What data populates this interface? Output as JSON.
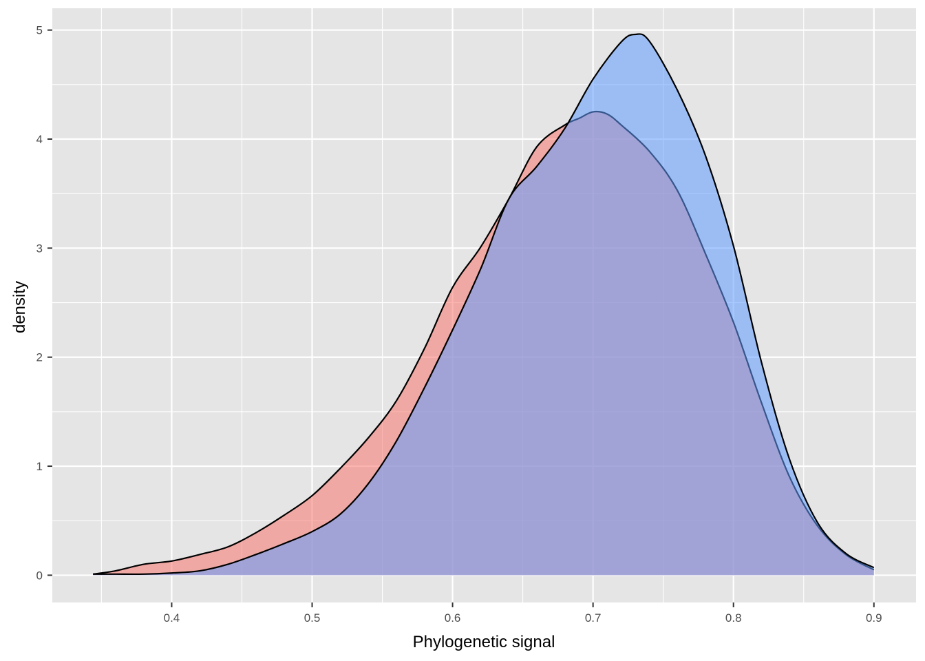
{
  "chart_data": {
    "type": "area",
    "title": "",
    "xlabel": "Phylogenetic signal",
    "ylabel": "density",
    "xlim": [
      0.315,
      0.93
    ],
    "ylim": [
      -0.25,
      5.2
    ],
    "x_ticks": [
      0.4,
      0.5,
      0.6,
      0.7,
      0.8,
      0.9
    ],
    "x_tick_labels": [
      "0.4",
      "0.5",
      "0.6",
      "0.7",
      "0.8",
      "0.9"
    ],
    "y_ticks": [
      0,
      1,
      2,
      3,
      4,
      5
    ],
    "y_tick_labels": [
      "0",
      "1",
      "2",
      "3",
      "4",
      "5"
    ],
    "grid": true,
    "legend": "none",
    "colors": {
      "panel": "#e5e5e5",
      "grid": "#ffffff",
      "series_a_fill": "#f8766d",
      "series_b_fill": "#619cff",
      "outline": "#000000"
    },
    "series": [
      {
        "fill": "#f8766d",
        "x": [
          0.344,
          0.36,
          0.38,
          0.4,
          0.42,
          0.44,
          0.46,
          0.48,
          0.5,
          0.52,
          0.54,
          0.56,
          0.58,
          0.6,
          0.62,
          0.64,
          0.66,
          0.68,
          0.69,
          0.7,
          0.71,
          0.72,
          0.74,
          0.76,
          0.78,
          0.8,
          0.82,
          0.84,
          0.86,
          0.88,
          0.9
        ],
        "y": [
          0.01,
          0.04,
          0.1,
          0.13,
          0.19,
          0.26,
          0.39,
          0.55,
          0.73,
          0.98,
          1.26,
          1.6,
          2.08,
          2.64,
          3.01,
          3.45,
          3.93,
          4.13,
          4.19,
          4.25,
          4.23,
          4.13,
          3.89,
          3.53,
          2.95,
          2.32,
          1.58,
          0.9,
          0.45,
          0.19,
          0.05
        ]
      },
      {
        "fill": "#619cff",
        "x": [
          0.344,
          0.36,
          0.38,
          0.4,
          0.42,
          0.44,
          0.46,
          0.48,
          0.5,
          0.52,
          0.54,
          0.56,
          0.58,
          0.6,
          0.62,
          0.64,
          0.66,
          0.68,
          0.7,
          0.72,
          0.73,
          0.74,
          0.76,
          0.78,
          0.8,
          0.82,
          0.84,
          0.86,
          0.88,
          0.9
        ],
        "y": [
          0.01,
          0.01,
          0.01,
          0.02,
          0.04,
          0.1,
          0.19,
          0.29,
          0.4,
          0.56,
          0.84,
          1.23,
          1.72,
          2.25,
          2.81,
          3.45,
          3.75,
          4.1,
          4.55,
          4.89,
          4.96,
          4.9,
          4.45,
          3.85,
          3.02,
          1.95,
          1.06,
          0.48,
          0.2,
          0.07
        ]
      }
    ]
  }
}
